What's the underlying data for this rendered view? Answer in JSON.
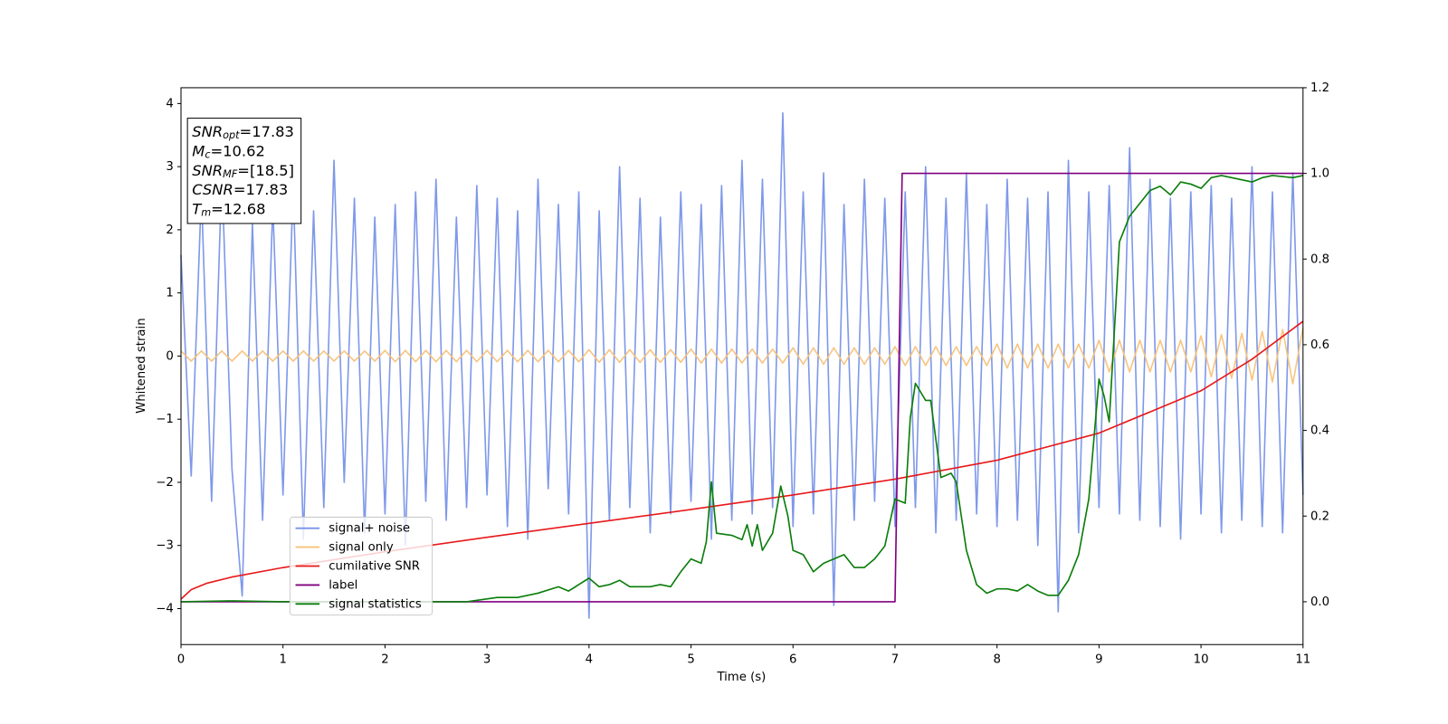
{
  "chart_data": {
    "type": "line",
    "xlabel": "Time (s)",
    "ylabel": "Whitened strain",
    "xlim": [
      0,
      11
    ],
    "ylim": [
      -4.57,
      4.25
    ],
    "y2lim": [
      -0.1,
      1.2
    ],
    "xticks": [
      0,
      1,
      2,
      3,
      4,
      5,
      6,
      7,
      8,
      9,
      10,
      11
    ],
    "yticks": [
      {
        "value": -4,
        "label": "−4"
      },
      {
        "value": -3,
        "label": "−3"
      },
      {
        "value": -2,
        "label": "−2"
      },
      {
        "value": -1,
        "label": "−1"
      },
      0,
      1,
      2,
      3,
      4
    ],
    "y2ticks": [
      {
        "value": 0,
        "label": "0.0"
      },
      {
        "value": 0.2,
        "label": "0.2"
      },
      {
        "value": 0.4,
        "label": "0.4"
      },
      {
        "value": 0.6,
        "label": "0.6"
      },
      {
        "value": 0.8,
        "label": "0.8"
      },
      {
        "value": 1,
        "label": "1.0"
      },
      {
        "value": 1.2,
        "label": "1.2"
      }
    ],
    "legend": "lower left",
    "annotation": [
      {
        "main": "SNR",
        "sub": "opt",
        "rest": "=17.83"
      },
      {
        "main": "M",
        "sub": "c",
        "rest": "=10.62"
      },
      {
        "main": "SNR",
        "sub": "MF",
        "rest": "=[18.5]"
      },
      {
        "main": "CSNR",
        "rest": "=17.83"
      },
      {
        "main": "T",
        "sub": "m",
        "rest": "=12.68"
      }
    ],
    "x": [
      0,
      0.1,
      0.2,
      0.3,
      0.4,
      0.5,
      0.6,
      0.7,
      0.8,
      0.9,
      1,
      1.1,
      1.2,
      1.3,
      1.4,
      1.5,
      1.6,
      1.7,
      1.8,
      1.9,
      2,
      2.1,
      2.2,
      2.3,
      2.4,
      2.5,
      2.6,
      2.7,
      2.8,
      2.9,
      3,
      3.1,
      3.2,
      3.3,
      3.4,
      3.5,
      3.6,
      3.7,
      3.8,
      3.9,
      4,
      4.1,
      4.2,
      4.3,
      4.4,
      4.5,
      4.6,
      4.7,
      4.8,
      4.9,
      5,
      5.1,
      5.2,
      5.3,
      5.4,
      5.5,
      5.6,
      5.7,
      5.8,
      5.9,
      6,
      6.1,
      6.2,
      6.3,
      6.4,
      6.5,
      6.6,
      6.7,
      6.8,
      6.9,
      7,
      7.1,
      7.2,
      7.3,
      7.4,
      7.5,
      7.6,
      7.7,
      7.8,
      7.9,
      8,
      8.1,
      8.2,
      8.3,
      8.4,
      8.5,
      8.6,
      8.7,
      8.8,
      8.9,
      9,
      9.1,
      9.2,
      9.3,
      9.4,
      9.5,
      9.6,
      9.7,
      9.8,
      9.9,
      10,
      10.1,
      10.2,
      10.3,
      10.4,
      10.5,
      10.6,
      10.7,
      10.8,
      10.9,
      11
    ],
    "series": [
      {
        "name": "signal+ noise",
        "color": "#7893e8",
        "values": [
          1.6,
          -1.9,
          2.6,
          -2.3,
          2.9,
          -1.8,
          -3.8,
          2.1,
          -2.6,
          2.4,
          -2.2,
          2.7,
          -2.9,
          2.3,
          -2.4,
          3.1,
          -2.0,
          2.5,
          -2.8,
          2.2,
          -2.5,
          2.4,
          -3.0,
          2.6,
          -2.3,
          2.8,
          -2.6,
          2.2,
          -2.4,
          2.7,
          -2.2,
          2.5,
          -2.7,
          2.3,
          -2.9,
          2.8,
          -2.1,
          2.4,
          -2.5,
          2.6,
          -4.15,
          2.3,
          -2.6,
          3.0,
          -2.4,
          2.5,
          -2.8,
          2.2,
          -2.5,
          2.6,
          -2.3,
          2.4,
          -2.9,
          2.7,
          -2.6,
          3.1,
          -2.5,
          2.8,
          -2.4,
          3.85,
          -2.7,
          2.6,
          -2.5,
          2.9,
          -3.95,
          2.4,
          -2.6,
          2.8,
          -2.3,
          2.5,
          -2.7,
          2.6,
          -2.4,
          3.0,
          -2.8,
          2.5,
          -2.6,
          2.9,
          -2.5,
          2.4,
          -2.7,
          2.8,
          -2.6,
          2.5,
          -3.0,
          2.6,
          -4.05,
          3.1,
          -2.8,
          2.6,
          -2.4,
          2.7,
          -2.5,
          3.3,
          -2.6,
          2.8,
          -2.7,
          2.5,
          -2.9,
          2.6,
          -2.5,
          2.7,
          -2.8,
          2.5,
          -2.6,
          3.0,
          -2.7,
          2.6,
          -2.8,
          2.9,
          -2.2
        ]
      },
      {
        "name": "signal only",
        "color": "#f7c27a",
        "values": [
          0.08,
          -0.08,
          0.08,
          -0.08,
          0.08,
          -0.08,
          0.08,
          -0.08,
          0.08,
          -0.08,
          0.08,
          -0.08,
          0.08,
          -0.08,
          0.08,
          -0.08,
          0.08,
          -0.08,
          0.08,
          -0.08,
          0.09,
          -0.09,
          0.09,
          -0.09,
          0.09,
          -0.09,
          0.09,
          -0.09,
          0.09,
          -0.09,
          0.09,
          -0.09,
          0.09,
          -0.09,
          0.09,
          -0.09,
          0.09,
          -0.09,
          0.09,
          -0.09,
          0.1,
          -0.1,
          0.1,
          -0.1,
          0.1,
          -0.1,
          0.1,
          -0.1,
          0.1,
          -0.1,
          0.11,
          -0.11,
          0.11,
          -0.11,
          0.11,
          -0.11,
          0.11,
          -0.11,
          0.11,
          -0.11,
          0.13,
          -0.13,
          0.13,
          -0.13,
          0.13,
          -0.13,
          0.13,
          -0.13,
          0.13,
          -0.13,
          0.15,
          -0.15,
          0.15,
          -0.15,
          0.15,
          -0.15,
          0.15,
          -0.15,
          0.15,
          -0.15,
          0.19,
          -0.19,
          0.19,
          -0.19,
          0.19,
          -0.19,
          0.19,
          -0.19,
          0.19,
          -0.19,
          0.25,
          -0.25,
          0.25,
          -0.25,
          0.25,
          -0.25,
          0.25,
          -0.25,
          0.25,
          -0.25,
          0.32,
          -0.33,
          0.34,
          -0.35,
          0.36,
          -0.38,
          0.39,
          -0.41,
          0.42,
          -0.44,
          0.45
        ]
      },
      {
        "name": "cumilative SNR",
        "color": "#e8181a",
        "x": [
          0,
          0.1,
          0.25,
          0.5,
          1,
          2,
          3,
          4,
          5,
          6,
          7,
          8,
          9,
          10,
          10.5,
          11
        ],
        "values": [
          -3.85,
          -3.7,
          -3.6,
          -3.5,
          -3.35,
          -3.1,
          -2.87,
          -2.65,
          -2.43,
          -2.2,
          -1.95,
          -1.65,
          -1.22,
          -0.55,
          -0.05,
          0.55
        ]
      },
      {
        "name": "label",
        "color": "#800080",
        "axis": "y2",
        "x": [
          0,
          7,
          7.07,
          11
        ],
        "values": [
          0,
          0,
          1,
          1
        ]
      },
      {
        "name": "signal statistics",
        "color": "#0a7d0a",
        "axis": "y2",
        "x": [
          0,
          0.5,
          1,
          2,
          2.8,
          3.1,
          3.3,
          3.5,
          3.7,
          3.8,
          3.9,
          4.0,
          4.1,
          4.2,
          4.3,
          4.4,
          4.6,
          4.7,
          4.8,
          4.9,
          5.0,
          5.1,
          5.15,
          5.2,
          5.25,
          5.4,
          5.5,
          5.55,
          5.6,
          5.65,
          5.7,
          5.8,
          5.88,
          5.95,
          6.0,
          6.1,
          6.2,
          6.3,
          6.4,
          6.5,
          6.6,
          6.7,
          6.8,
          6.9,
          7.0,
          7.1,
          7.15,
          7.2,
          7.3,
          7.35,
          7.45,
          7.55,
          7.6,
          7.7,
          7.8,
          7.9,
          8.0,
          8.1,
          8.2,
          8.3,
          8.4,
          8.5,
          8.6,
          8.7,
          8.8,
          8.9,
          9.0,
          9.05,
          9.1,
          9.2,
          9.3,
          9.4,
          9.5,
          9.6,
          9.7,
          9.8,
          9.9,
          10.0,
          10.1,
          10.2,
          10.4,
          10.5,
          10.6,
          10.7,
          10.9,
          11
        ],
        "values": [
          0,
          0.002,
          0,
          0,
          0,
          0.01,
          0.01,
          0.02,
          0.035,
          0.025,
          0.04,
          0.055,
          0.035,
          0.04,
          0.05,
          0.035,
          0.035,
          0.04,
          0.035,
          0.07,
          0.1,
          0.09,
          0.14,
          0.28,
          0.16,
          0.155,
          0.145,
          0.18,
          0.13,
          0.18,
          0.12,
          0.16,
          0.27,
          0.2,
          0.12,
          0.11,
          0.07,
          0.09,
          0.1,
          0.11,
          0.08,
          0.08,
          0.1,
          0.13,
          0.24,
          0.23,
          0.43,
          0.51,
          0.47,
          0.47,
          0.29,
          0.3,
          0.28,
          0.12,
          0.04,
          0.02,
          0.03,
          0.03,
          0.025,
          0.04,
          0.025,
          0.015,
          0.015,
          0.05,
          0.11,
          0.24,
          0.52,
          0.48,
          0.42,
          0.84,
          0.9,
          0.93,
          0.96,
          0.97,
          0.95,
          0.98,
          0.975,
          0.965,
          0.99,
          0.995,
          0.985,
          0.98,
          0.99,
          0.995,
          0.99,
          0.995
        ]
      }
    ]
  }
}
